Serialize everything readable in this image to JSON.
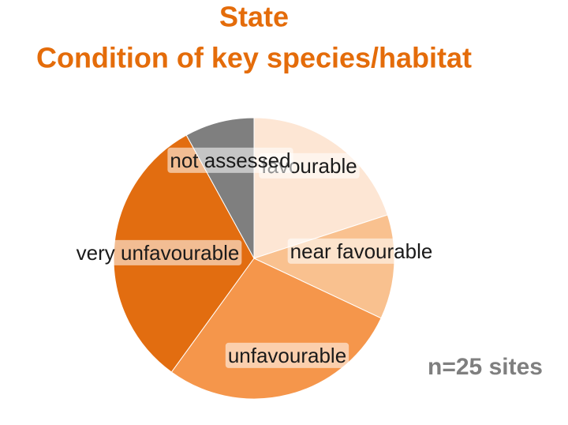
{
  "chart_data": {
    "type": "pie",
    "title": "State",
    "subtitle": "Condition of key species/habitat",
    "annotation": "n=25 sites",
    "categories": [
      "favourable",
      "near favourable",
      "unfavourable",
      "very unfavourable",
      "not assessed"
    ],
    "values": [
      5,
      3,
      7,
      8,
      2
    ],
    "colors": [
      "#fde6d4",
      "#f9c18f",
      "#f5964b",
      "#e26d10",
      "#7f7f7f"
    ]
  }
}
